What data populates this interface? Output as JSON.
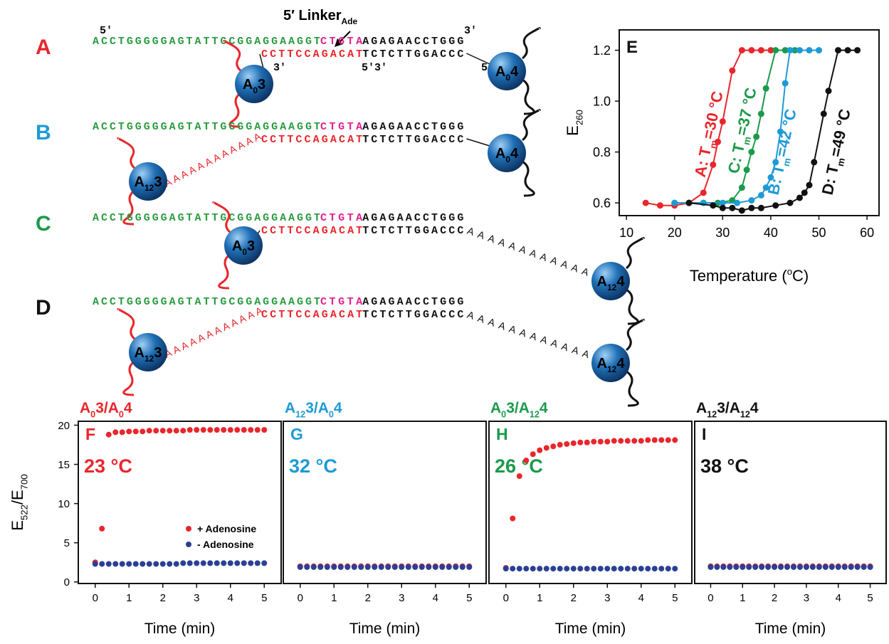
{
  "diagram": {
    "linker_label": [
      "5′ Linker",
      "Ade"
    ],
    "strand_ends": [
      "5′",
      "3′",
      "3′",
      "5′3′",
      "5′"
    ],
    "panels": [
      {
        "label": "A",
        "top_strand": [
          "ACCTGGGGGAGTATTGCGGAGGAAGGT",
          "CTGTA",
          "AGAGAACCTGGG"
        ],
        "bottom_strand": [
          "CCTTCCAGACAT",
          "TCTCTTGGACCC"
        ],
        "spheres": [
          [
            "A",
            "0",
            "3"
          ],
          [
            "A",
            "0",
            "4"
          ]
        ]
      },
      {
        "label": "B",
        "top_strand": [
          "ACCTGGGGGAGTATTGCGGAGGAAGGT",
          "CTGTA",
          "AGAGAACCTGGG"
        ],
        "bottom_strand": [
          "CCTTCCAGACAT",
          "TCTCTTGGACCC"
        ],
        "left_linker": "AAAAAAAAAAAA",
        "spheres": [
          [
            "A",
            "12",
            "3"
          ],
          [
            "A",
            "0",
            "4"
          ]
        ]
      },
      {
        "label": "C",
        "top_strand": [
          "ACCTGGGGGAGTATTGCGGAGGAAGGT",
          "CTGTA",
          "AGAGAACCTGGG"
        ],
        "bottom_strand": [
          "CCTTCCAGACAT",
          "TCTCTTGGACCC"
        ],
        "right_linker": "AAAAAAAAAAAA",
        "spheres": [
          [
            "A",
            "0",
            "3"
          ],
          [
            "A",
            "12",
            "4"
          ]
        ]
      },
      {
        "label": "D",
        "top_strand": [
          "ACCTGGGGGAGTATTGCGGAGGAAGGT",
          "CTGTA",
          "AGAGAACCTGGG"
        ],
        "bottom_strand": [
          "CCTTCCAGACAT",
          "TCTCTTGGACCC"
        ],
        "left_linker": "AAAAAAAAAAAA",
        "right_linker": "AAAAAAAAAAAA",
        "spheres": [
          [
            "A",
            "12",
            "3"
          ],
          [
            "A",
            "12",
            "4"
          ]
        ]
      }
    ]
  },
  "chart_data": [
    {
      "type": "line",
      "panel_label": "E",
      "xlabel": [
        "Temperature (",
        "o",
        "C)"
      ],
      "ylabel": [
        "E",
        "260"
      ],
      "xlim": [
        8.5,
        62.5
      ],
      "ylim": [
        0.55,
        1.28
      ],
      "xticks": [
        10,
        20,
        30,
        40,
        50,
        60
      ],
      "yticks": [
        0.6,
        0.8,
        {
          "value": 1,
          "label": "1.0"
        },
        1.2
      ],
      "series": [
        {
          "color": "#e8262b",
          "x": [
            14,
            17,
            20,
            23,
            26,
            28,
            29,
            30,
            32,
            34,
            36,
            38,
            40
          ],
          "values": [
            0.6,
            0.59,
            0.59,
            0.6,
            0.64,
            0.75,
            0.84,
            0.92,
            1.12,
            1.2,
            1.2,
            1.2,
            1.2
          ]
        },
        {
          "color": "#1a9a4a",
          "x": [
            20,
            23,
            26,
            29,
            32,
            34,
            35,
            36,
            37,
            38,
            39,
            41,
            43,
            45
          ],
          "values": [
            0.6,
            0.6,
            0.6,
            0.6,
            0.61,
            0.66,
            0.73,
            0.8,
            0.86,
            0.95,
            1.05,
            1.2,
            1.2,
            1.2
          ]
        },
        {
          "color": "#1e9ad6",
          "x": [
            20,
            26,
            30,
            33,
            36,
            38,
            39,
            40,
            41,
            42,
            43,
            44,
            46,
            48,
            50
          ],
          "values": [
            0.6,
            0.6,
            0.6,
            0.6,
            0.61,
            0.63,
            0.66,
            0.7,
            0.76,
            0.88,
            1.07,
            1.2,
            1.2,
            1.2,
            1.2
          ]
        },
        {
          "color": "#111111",
          "x": [
            23,
            28,
            30,
            32,
            34,
            36,
            38,
            41,
            44,
            46,
            47,
            48,
            49,
            51,
            52,
            54,
            56,
            58
          ],
          "values": [
            0.6,
            0.59,
            0.58,
            0.58,
            0.57,
            0.58,
            0.58,
            0.59,
            0.6,
            0.62,
            0.64,
            0.67,
            0.76,
            0.95,
            1.04,
            1.2,
            1.2,
            1.2
          ]
        }
      ],
      "annotations": [
        {
          "parts": [
            "A: T",
            "m",
            "=30 °C"
          ],
          "color": "#e8262b"
        },
        {
          "parts": [
            "C: T",
            "m",
            "=37 °C"
          ],
          "color": "#1a9a4a"
        },
        {
          "parts": [
            "B: T",
            "m",
            "=42 °C"
          ],
          "color": "#1e9ad6"
        },
        {
          "parts": [
            "D: T",
            "m",
            "=49 °C"
          ],
          "color": "#111111"
        }
      ]
    },
    {
      "type": "scatter",
      "title": [
        "A",
        "0",
        "3/A",
        "0",
        "4"
      ],
      "title_color": "#e8262b",
      "panel_label": "F",
      "annotation": "23 °C",
      "label_color": "#e8262b",
      "xlabel": [
        "Time (min)"
      ],
      "ylabel": [
        "E",
        "522",
        "/E",
        "700"
      ],
      "legend": "lower right",
      "xlim": [
        -0.5,
        5.5
      ],
      "ylim": [
        -0.2,
        20.5
      ],
      "xticks": [
        0,
        1,
        2,
        3,
        4,
        5
      ],
      "yticks": [
        0,
        5,
        10,
        15,
        20
      ],
      "x": [
        0,
        0.2,
        0.4,
        0.6,
        0.8,
        1,
        1.2,
        1.4,
        1.6,
        1.8,
        2,
        2.2,
        2.4,
        2.6,
        2.8,
        3,
        3.2,
        3.4,
        3.6,
        3.8,
        4,
        4.2,
        4.4,
        4.6,
        4.8,
        5
      ],
      "series": [
        {
          "name": "+ Adenosine",
          "color": "#e8262b",
          "values": [
            2.5,
            6.8,
            18.8,
            19.1,
            19.1,
            19.2,
            19.2,
            19.2,
            19.3,
            19.3,
            19.3,
            19.3,
            19.3,
            19.3,
            19.4,
            19.4,
            19.4,
            19.4,
            19.4,
            19.4,
            19.4,
            19.4,
            19.4,
            19.4,
            19.4,
            19.4
          ]
        },
        {
          "name": "- Adenosine",
          "color": "#2b3f94",
          "values": [
            2.3,
            2.3,
            2.3,
            2.3,
            2.3,
            2.3,
            2.3,
            2.3,
            2.3,
            2.3,
            2.3,
            2.3,
            2.3,
            2.4,
            2.4,
            2.4,
            2.4,
            2.4,
            2.4,
            2.4,
            2.4,
            2.4,
            2.4,
            2.4,
            2.4,
            2.4
          ]
        }
      ]
    },
    {
      "type": "scatter",
      "title": [
        "A",
        "12",
        "3/A",
        "0",
        "4"
      ],
      "title_color": "#1e9ad6",
      "panel_label": "G",
      "annotation": "32 °C",
      "label_color": "#1e9ad6",
      "xlabel": [
        "Time (min)"
      ],
      "xlim": [
        -0.5,
        5.5
      ],
      "ylim": [
        -0.2,
        20.5
      ],
      "xticks": [
        0,
        1,
        2,
        3,
        4,
        5
      ],
      "x": [
        0,
        0.2,
        0.4,
        0.6,
        0.8,
        1,
        1.2,
        1.4,
        1.6,
        1.8,
        2,
        2.2,
        2.4,
        2.6,
        2.8,
        3,
        3.2,
        3.4,
        3.6,
        3.8,
        4,
        4.2,
        4.4,
        4.6,
        4.8,
        5
      ],
      "series": [
        {
          "color": "#e8262b",
          "values": [
            2,
            2,
            2,
            2,
            2,
            2,
            2,
            2,
            2,
            2,
            2,
            2,
            2,
            2,
            2,
            2,
            2,
            2,
            2,
            2,
            2,
            2,
            2,
            2,
            2,
            2
          ]
        },
        {
          "color": "#2b3f94",
          "values": [
            1.9,
            1.9,
            1.9,
            1.9,
            1.9,
            1.9,
            1.9,
            1.9,
            1.9,
            1.9,
            1.9,
            1.9,
            1.9,
            1.9,
            1.9,
            1.9,
            1.9,
            1.9,
            1.9,
            1.9,
            1.9,
            1.9,
            1.9,
            1.9,
            1.9,
            1.9
          ]
        }
      ]
    },
    {
      "type": "scatter",
      "title": [
        "A",
        "0",
        "3/A",
        "12",
        "4"
      ],
      "title_color": "#1a9a4a",
      "panel_label": "H",
      "annotation": "26 °C",
      "label_color": "#1a9a4a",
      "xlabel": [
        "Time (min)"
      ],
      "xlim": [
        -0.5,
        5.5
      ],
      "ylim": [
        -0.2,
        20.5
      ],
      "xticks": [
        0,
        1,
        2,
        3,
        4,
        5
      ],
      "x": [
        0,
        0.2,
        0.4,
        0.6,
        0.8,
        1,
        1.2,
        1.4,
        1.6,
        1.8,
        2,
        2.2,
        2.4,
        2.6,
        2.8,
        3,
        3.2,
        3.4,
        3.6,
        3.8,
        4,
        4.2,
        4.4,
        4.6,
        4.8,
        5
      ],
      "series": [
        {
          "color": "#e8262b",
          "values": [
            1.8,
            8.1,
            13.5,
            15.5,
            16.3,
            16.8,
            17.1,
            17.3,
            17.5,
            17.6,
            17.7,
            17.8,
            17.8,
            17.9,
            17.9,
            17.9,
            18,
            18,
            18,
            18,
            18,
            18.1,
            18.1,
            18.1,
            18.1,
            18.1
          ]
        },
        {
          "color": "#2b3f94",
          "values": [
            1.7,
            1.7,
            1.7,
            1.7,
            1.7,
            1.7,
            1.7,
            1.7,
            1.7,
            1.7,
            1.7,
            1.7,
            1.7,
            1.7,
            1.7,
            1.7,
            1.7,
            1.7,
            1.7,
            1.7,
            1.7,
            1.7,
            1.7,
            1.7,
            1.7,
            1.7
          ]
        }
      ]
    },
    {
      "type": "scatter",
      "title": [
        "A",
        "12",
        "3/A",
        "12",
        "4"
      ],
      "title_color": "#111111",
      "panel_label": "I",
      "annotation": "38 °C",
      "label_color": "#111111",
      "xlabel": [
        "Time (min)"
      ],
      "xlim": [
        -0.5,
        5.5
      ],
      "ylim": [
        -0.2,
        20.5
      ],
      "xticks": [
        0,
        1,
        2,
        3,
        4,
        5
      ],
      "x": [
        0,
        0.2,
        0.4,
        0.6,
        0.8,
        1,
        1.2,
        1.4,
        1.6,
        1.8,
        2,
        2.2,
        2.4,
        2.6,
        2.8,
        3,
        3.2,
        3.4,
        3.6,
        3.8,
        4,
        4.2,
        4.4,
        4.6,
        4.8,
        5
      ],
      "series": [
        {
          "color": "#e8262b",
          "values": [
            2,
            2,
            2,
            2,
            2,
            2,
            2,
            2,
            2,
            2,
            2,
            2,
            2,
            2,
            2,
            2,
            2,
            2,
            2,
            2,
            2,
            2,
            2,
            2,
            2,
            2
          ]
        },
        {
          "color": "#2b3f94",
          "values": [
            1.9,
            1.9,
            1.9,
            1.9,
            1.9,
            1.9,
            1.9,
            1.9,
            1.9,
            1.9,
            1.9,
            1.9,
            1.9,
            1.9,
            1.9,
            1.9,
            1.9,
            1.9,
            1.9,
            1.9,
            1.9,
            1.9,
            1.9,
            1.9,
            1.9,
            1.9
          ]
        }
      ]
    }
  ]
}
